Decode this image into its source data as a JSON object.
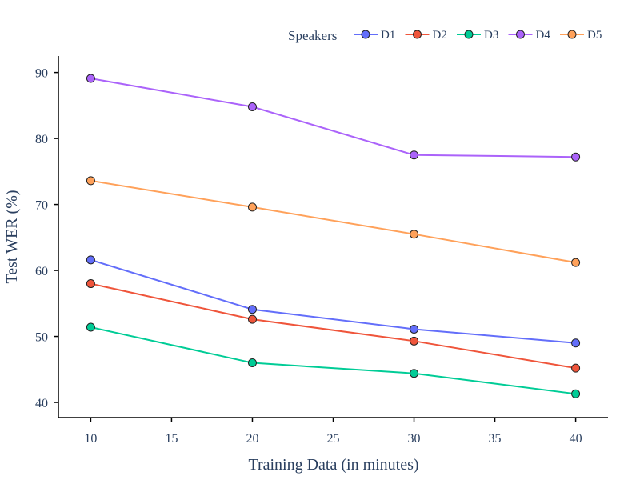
{
  "chart_data": {
    "type": "line",
    "xlabel": "Training Data (in minutes)",
    "ylabel": "Test WER (%)",
    "xlim": [
      8,
      42
    ],
    "ylim": [
      37.7,
      92.5
    ],
    "x_ticks": [
      10,
      15,
      20,
      25,
      30,
      35,
      40
    ],
    "y_ticks": [
      40,
      50,
      60,
      70,
      80,
      90
    ],
    "x": [
      10,
      20,
      30,
      40
    ],
    "legend_title": "Speakers",
    "legend_position": "top-right",
    "grid": false,
    "series": [
      {
        "name": "D1",
        "color": "#636efa",
        "values": [
          61.6,
          54.1,
          51.1,
          49.0
        ]
      },
      {
        "name": "D2",
        "color": "#ef553b",
        "values": [
          58.0,
          52.6,
          49.3,
          45.2
        ]
      },
      {
        "name": "D3",
        "color": "#00cc96",
        "values": [
          51.4,
          46.0,
          44.4,
          41.3
        ]
      },
      {
        "name": "D4",
        "color": "#ab63fa",
        "values": [
          89.1,
          84.8,
          77.5,
          77.2
        ]
      },
      {
        "name": "D5",
        "color": "#ffa15a",
        "values": [
          73.6,
          69.6,
          65.5,
          61.2
        ]
      }
    ]
  }
}
